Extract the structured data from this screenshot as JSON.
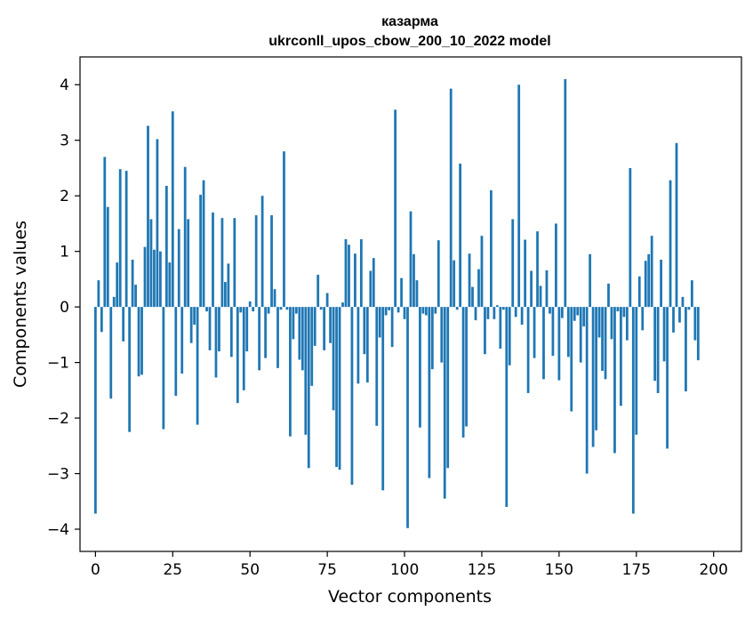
{
  "chart_data": {
    "type": "bar",
    "title_line1": "казарма",
    "title_line2": "ukrconll_upos_cbow_200_10_2022 model",
    "xlabel": "Vector components",
    "ylabel": "Components values",
    "xlim": [
      -5,
      209
    ],
    "ylim": [
      -4.4,
      4.5
    ],
    "xticks": [
      0,
      25,
      50,
      75,
      100,
      125,
      150,
      175,
      200
    ],
    "yticks": [
      -4,
      -3,
      -2,
      -1,
      0,
      1,
      2,
      3,
      4
    ],
    "bar_color": "#1f77b4",
    "values": [
      -3.72,
      0.48,
      -0.45,
      2.7,
      1.8,
      -1.65,
      0.18,
      0.8,
      2.48,
      -0.62,
      2.45,
      -2.25,
      0.85,
      0.4,
      -1.25,
      -1.22,
      1.08,
      3.26,
      1.58,
      1.03,
      3.02,
      1.0,
      -2.2,
      2.18,
      0.8,
      3.52,
      -1.6,
      1.4,
      -1.2,
      2.52,
      1.58,
      -0.65,
      -0.32,
      -2.12,
      2.02,
      2.28,
      -0.08,
      -0.78,
      1.7,
      -1.27,
      -0.8,
      1.6,
      0.45,
      0.78,
      -0.9,
      1.6,
      -1.73,
      -0.1,
      -1.5,
      -0.8,
      0.1,
      -0.08,
      1.65,
      -1.14,
      2.0,
      -0.92,
      -0.12,
      1.65,
      0.32,
      -1.1,
      -0.05,
      2.8,
      -0.05,
      -2.33,
      -0.58,
      -0.12,
      -0.95,
      -1.14,
      -2.3,
      -2.9,
      -1.42,
      -0.7,
      0.58,
      -0.05,
      -0.78,
      0.25,
      -0.65,
      -1.86,
      -2.88,
      -2.93,
      0.08,
      1.22,
      1.12,
      -3.2,
      0.96,
      -1.38,
      1.22,
      -0.85,
      -1.36,
      0.65,
      0.88,
      -2.14,
      -0.55,
      -3.3,
      -0.15,
      -0.06,
      -0.72,
      3.55,
      -0.1,
      0.52,
      -0.22,
      -3.98,
      1.72,
      0.95,
      0.48,
      -2.17,
      -0.12,
      -0.15,
      -3.08,
      -1.12,
      -0.12,
      1.2,
      -1.0,
      -3.45,
      -2.9,
      3.93,
      0.84,
      -0.05,
      2.58,
      -2.35,
      -2.15,
      0.96,
      0.36,
      -0.24,
      0.68,
      1.28,
      -0.85,
      -0.22,
      2.1,
      -0.22,
      0.03,
      -0.75,
      -0.05,
      -3.6,
      -1.05,
      1.58,
      -0.18,
      4.0,
      -0.32,
      1.21,
      -1.55,
      0.65,
      -0.92,
      1.36,
      0.38,
      -1.3,
      0.66,
      -0.12,
      -0.88,
      1.5,
      -1.32,
      -0.2,
      4.1,
      -0.9,
      -1.88,
      -0.25,
      -0.15,
      -1.0,
      -0.35,
      -3.0,
      0.95,
      -2.52,
      -2.22,
      -0.55,
      -1.15,
      -1.3,
      0.42,
      -0.58,
      -2.63,
      -0.08,
      -1.78,
      -0.18,
      -0.6,
      2.5,
      -3.72,
      -2.3,
      0.55,
      -0.42,
      0.83,
      0.95,
      1.28,
      -1.33,
      -1.55,
      0.85,
      -0.98,
      -2.55,
      2.28,
      -0.46,
      2.95,
      -0.28,
      0.18,
      -1.52,
      -0.05,
      0.48,
      -0.6,
      -0.96
    ]
  }
}
